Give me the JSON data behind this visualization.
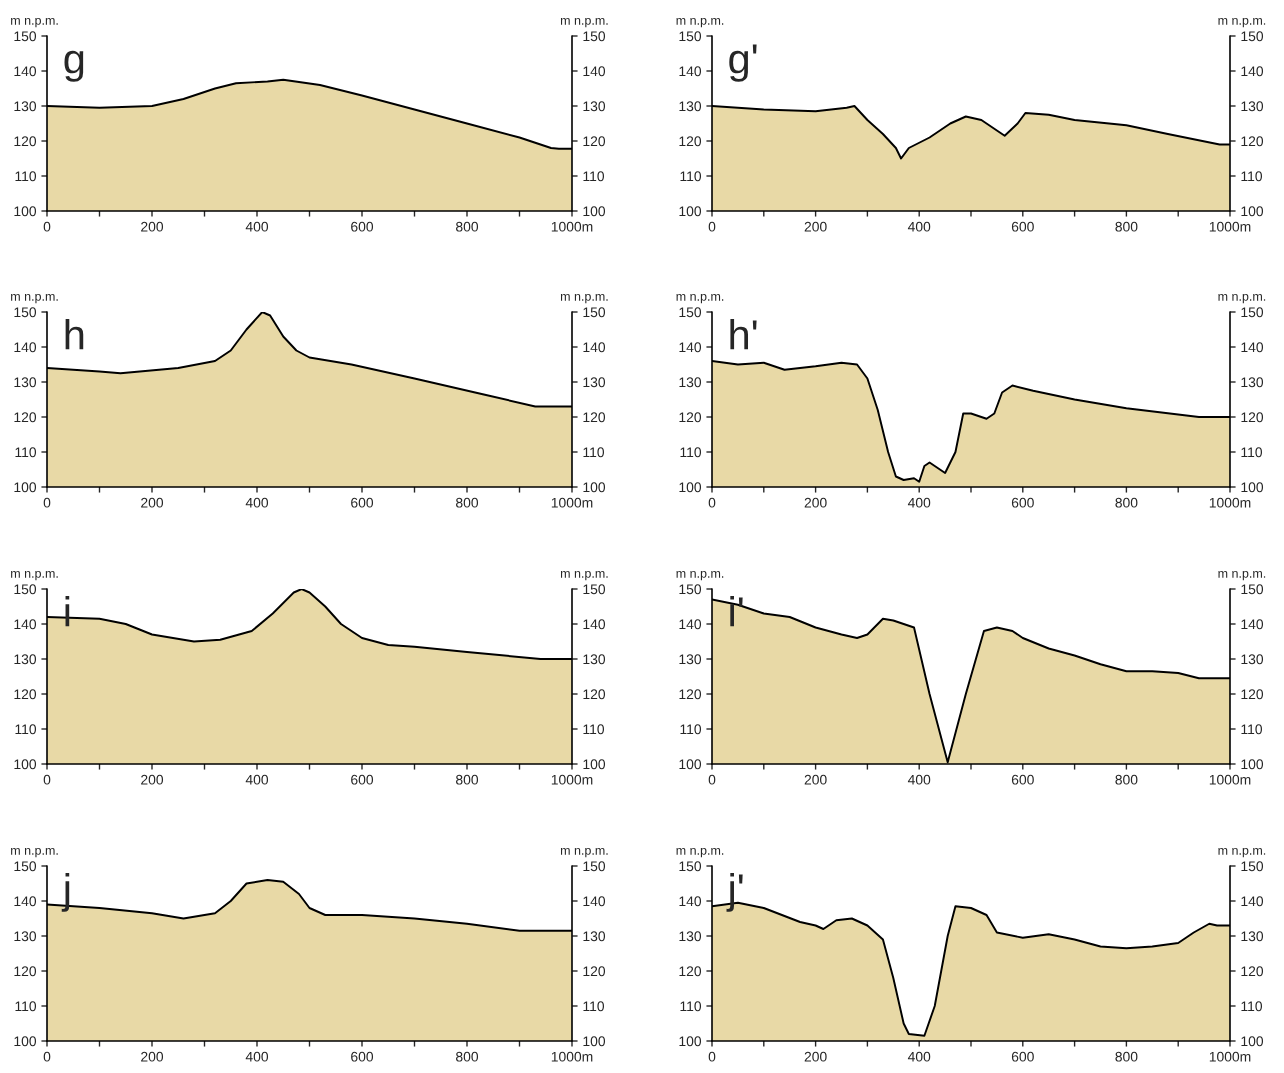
{
  "chart_data": [
    {
      "type": "area",
      "title": "g",
      "ylabel": "m n.p.m.",
      "y2label": "m n.p.m.",
      "xlim": [
        0,
        1000
      ],
      "ylim": [
        100,
        150
      ],
      "y2lim": [
        100,
        150
      ],
      "xticks": [
        0,
        {
          "value": 100,
          "label": null
        },
        200,
        {
          "value": 300,
          "label": null
        },
        400,
        {
          "value": 500,
          "label": null
        },
        600,
        {
          "value": 700,
          "label": null
        },
        800,
        {
          "value": 900,
          "label": null
        },
        {
          "value": 1000,
          "label": "1000m"
        }
      ],
      "yticks": [
        100,
        110,
        120,
        130,
        140,
        150
      ],
      "y2ticks": [
        100,
        110,
        120,
        130,
        140,
        150
      ],
      "series": [
        {
          "color": "#e8d9a6",
          "x": [
            0,
            100,
            200,
            260,
            320,
            360,
            420,
            450,
            520,
            600,
            700,
            800,
            900,
            960,
            975,
            1000
          ],
          "values": [
            130,
            129.5,
            130,
            132,
            135,
            136.5,
            137,
            137.5,
            136,
            133,
            129,
            125,
            121,
            118,
            117.8,
            117.8
          ]
        }
      ]
    },
    {
      "type": "area",
      "title": "g'",
      "ylabel": "m n.p.m.",
      "y2label": "m n.p.m.",
      "xlim": [
        0,
        1000
      ],
      "ylim": [
        100,
        150
      ],
      "y2lim": [
        100,
        150
      ],
      "xticks": [
        0,
        {
          "value": 100,
          "label": null
        },
        200,
        {
          "value": 300,
          "label": null
        },
        400,
        {
          "value": 500,
          "label": null
        },
        600,
        {
          "value": 700,
          "label": null
        },
        800,
        {
          "value": 900,
          "label": null
        },
        {
          "value": 1000,
          "label": "1000m"
        }
      ],
      "yticks": [
        100,
        110,
        120,
        130,
        140,
        150
      ],
      "y2ticks": [
        100,
        110,
        120,
        130,
        140,
        150
      ],
      "series": [
        {
          "color": "#e8d9a6",
          "x": [
            0,
            100,
            200,
            260,
            275,
            300,
            330,
            355,
            365,
            380,
            420,
            460,
            490,
            520,
            550,
            565,
            590,
            605,
            650,
            700,
            800,
            880,
            980,
            1000
          ],
          "values": [
            130,
            129,
            128.5,
            129.5,
            130,
            126,
            122,
            118,
            115,
            118,
            121,
            125,
            127,
            126,
            123,
            121.5,
            125,
            128,
            127.5,
            126,
            124.5,
            122,
            119,
            119
          ]
        }
      ]
    },
    {
      "type": "area",
      "title": "h",
      "ylabel": "m n.p.m.",
      "y2label": "m n.p.m.",
      "xlim": [
        0,
        1000
      ],
      "ylim": [
        100,
        150
      ],
      "y2lim": [
        100,
        150
      ],
      "xticks": [
        0,
        {
          "value": 100,
          "label": null
        },
        200,
        {
          "value": 300,
          "label": null
        },
        400,
        {
          "value": 500,
          "label": null
        },
        600,
        {
          "value": 700,
          "label": null
        },
        800,
        {
          "value": 900,
          "label": null
        },
        {
          "value": 1000,
          "label": "1000m"
        }
      ],
      "yticks": [
        100,
        110,
        120,
        130,
        140,
        150
      ],
      "y2ticks": [
        100,
        110,
        120,
        130,
        140,
        150
      ],
      "series": [
        {
          "color": "#e8d9a6",
          "x": [
            0,
            100,
            140,
            250,
            320,
            350,
            380,
            410,
            425,
            450,
            475,
            500,
            580,
            700,
            830,
            930,
            1000
          ],
          "values": [
            134,
            133,
            132.5,
            134,
            136,
            139,
            145,
            150,
            149,
            143,
            139,
            137,
            135,
            131,
            126.5,
            123,
            123
          ]
        }
      ]
    },
    {
      "type": "area",
      "title": "h'",
      "ylabel": "m n.p.m.",
      "y2label": "m n.p.m.",
      "xlim": [
        0,
        1000
      ],
      "ylim": [
        100,
        150
      ],
      "y2lim": [
        100,
        150
      ],
      "xticks": [
        0,
        {
          "value": 100,
          "label": null
        },
        200,
        {
          "value": 300,
          "label": null
        },
        400,
        {
          "value": 500,
          "label": null
        },
        600,
        {
          "value": 700,
          "label": null
        },
        800,
        {
          "value": 900,
          "label": null
        },
        {
          "value": 1000,
          "label": "1000m"
        }
      ],
      "yticks": [
        100,
        110,
        120,
        130,
        140,
        150
      ],
      "y2ticks": [
        100,
        110,
        120,
        130,
        140,
        150
      ],
      "series": [
        {
          "color": "#e8d9a6",
          "x": [
            0,
            50,
            100,
            140,
            200,
            250,
            280,
            300,
            320,
            340,
            355,
            370,
            390,
            400,
            410,
            420,
            440,
            450,
            470,
            485,
            500,
            530,
            545,
            560,
            580,
            620,
            700,
            800,
            940,
            1000
          ],
          "values": [
            136,
            135,
            135.5,
            133.5,
            134.5,
            135.5,
            135,
            131,
            122,
            110,
            103,
            102,
            102.5,
            101.5,
            106,
            107,
            105,
            104,
            110,
            121,
            121,
            119.5,
            121,
            127,
            129,
            127.5,
            125,
            122.5,
            120,
            120
          ]
        }
      ]
    },
    {
      "type": "area",
      "title": "i",
      "ylabel": "m n.p.m.",
      "y2label": "m n.p.m.",
      "xlim": [
        0,
        1000
      ],
      "ylim": [
        100,
        150
      ],
      "y2lim": [
        100,
        150
      ],
      "xticks": [
        0,
        {
          "value": 100,
          "label": null
        },
        200,
        {
          "value": 300,
          "label": null
        },
        400,
        {
          "value": 500,
          "label": null
        },
        600,
        {
          "value": 700,
          "label": null
        },
        800,
        {
          "value": 900,
          "label": null
        },
        {
          "value": 1000,
          "label": "1000m"
        }
      ],
      "yticks": [
        100,
        110,
        120,
        130,
        140,
        150
      ],
      "y2ticks": [
        100,
        110,
        120,
        130,
        140,
        150
      ],
      "series": [
        {
          "color": "#e8d9a6",
          "x": [
            0,
            100,
            150,
            200,
            280,
            330,
            390,
            430,
            470,
            485,
            500,
            530,
            560,
            600,
            650,
            700,
            800,
            940,
            1000
          ],
          "values": [
            142,
            141.5,
            140,
            137,
            135,
            135.5,
            138,
            143,
            149,
            150,
            149,
            145,
            140,
            136,
            134,
            133.5,
            132,
            130,
            130
          ]
        }
      ]
    },
    {
      "type": "area",
      "title": "i'",
      "ylabel": "m n.p.m.",
      "y2label": "m n.p.m.",
      "xlim": [
        0,
        1000
      ],
      "ylim": [
        100,
        150
      ],
      "y2lim": [
        100,
        150
      ],
      "xticks": [
        0,
        {
          "value": 100,
          "label": null
        },
        200,
        {
          "value": 300,
          "label": null
        },
        400,
        {
          "value": 500,
          "label": null
        },
        600,
        {
          "value": 700,
          "label": null
        },
        800,
        {
          "value": 900,
          "label": null
        },
        {
          "value": 1000,
          "label": "1000m"
        }
      ],
      "yticks": [
        100,
        110,
        120,
        130,
        140,
        150
      ],
      "y2ticks": [
        100,
        110,
        120,
        130,
        140,
        150
      ],
      "series": [
        {
          "color": "#e8d9a6",
          "x": [
            0,
            50,
            100,
            150,
            200,
            250,
            280,
            300,
            330,
            350,
            390,
            420,
            455,
            490,
            525,
            550,
            580,
            600,
            650,
            700,
            750,
            800,
            850,
            900,
            940,
            1000
          ],
          "values": [
            147,
            145.5,
            143,
            142,
            139,
            137,
            136,
            137,
            141.5,
            141,
            139,
            120,
            100.5,
            120,
            138,
            139,
            138,
            136,
            133,
            131,
            128.5,
            126.5,
            126.5,
            126,
            124.5,
            124.5
          ]
        }
      ]
    },
    {
      "type": "area",
      "title": "j",
      "ylabel": "m n.p.m.",
      "y2label": "m n.p.m.",
      "xlim": [
        0,
        1000
      ],
      "ylim": [
        100,
        150
      ],
      "y2lim": [
        100,
        150
      ],
      "xticks": [
        0,
        {
          "value": 100,
          "label": null
        },
        200,
        {
          "value": 300,
          "label": null
        },
        400,
        {
          "value": 500,
          "label": null
        },
        600,
        {
          "value": 700,
          "label": null
        },
        800,
        {
          "value": 900,
          "label": null
        },
        {
          "value": 1000,
          "label": "1000m"
        }
      ],
      "yticks": [
        100,
        110,
        120,
        130,
        140,
        150
      ],
      "y2ticks": [
        100,
        110,
        120,
        130,
        140,
        150
      ],
      "series": [
        {
          "color": "#e8d9a6",
          "x": [
            0,
            100,
            200,
            260,
            320,
            350,
            380,
            420,
            450,
            480,
            500,
            530,
            600,
            700,
            800,
            900,
            950,
            1000
          ],
          "values": [
            139,
            138,
            136.5,
            135,
            136.5,
            140,
            145,
            146,
            145.5,
            142,
            138,
            136,
            136,
            135,
            133.5,
            131.5,
            131.5,
            131.5
          ]
        }
      ]
    },
    {
      "type": "area",
      "title": "j'",
      "ylabel": "m n.p.m.",
      "y2label": "m n.p.m.",
      "xlim": [
        0,
        1000
      ],
      "ylim": [
        100,
        150
      ],
      "y2lim": [
        100,
        150
      ],
      "xticks": [
        0,
        {
          "value": 100,
          "label": null
        },
        200,
        {
          "value": 300,
          "label": null
        },
        400,
        {
          "value": 500,
          "label": null
        },
        600,
        {
          "value": 700,
          "label": null
        },
        800,
        {
          "value": 900,
          "label": null
        },
        {
          "value": 1000,
          "label": "1000m"
        }
      ],
      "yticks": [
        100,
        110,
        120,
        130,
        140,
        150
      ],
      "y2ticks": [
        100,
        110,
        120,
        130,
        140,
        150
      ],
      "series": [
        {
          "color": "#e8d9a6",
          "x": [
            0,
            50,
            100,
            170,
            200,
            215,
            240,
            270,
            300,
            330,
            350,
            370,
            380,
            410,
            430,
            455,
            470,
            500,
            530,
            550,
            600,
            650,
            700,
            750,
            800,
            850,
            900,
            930,
            960,
            975,
            1000
          ],
          "values": [
            138.5,
            139.5,
            138,
            134,
            133,
            132,
            134.5,
            135,
            133,
            129,
            118,
            105,
            102,
            101.5,
            110,
            130,
            138.5,
            138,
            136,
            131,
            129.5,
            130.5,
            129,
            127,
            126.5,
            127,
            128,
            131,
            133.5,
            133,
            133
          ]
        }
      ]
    }
  ]
}
